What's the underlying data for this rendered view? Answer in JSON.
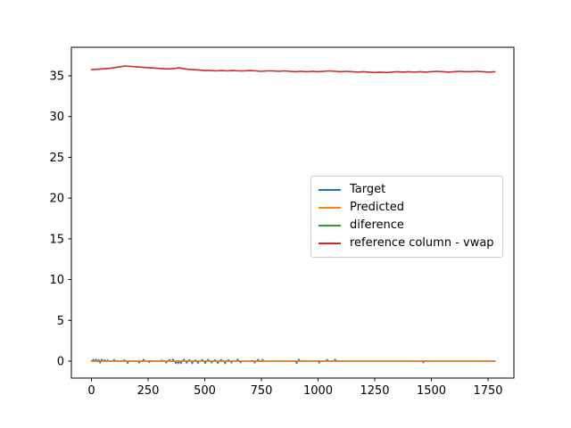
{
  "chart_data": {
    "type": "line",
    "title": "",
    "xlabel": "",
    "ylabel": "",
    "xticks": [
      0,
      250,
      500,
      750,
      1000,
      1250,
      1500,
      1750
    ],
    "yticks": [
      0,
      5,
      10,
      15,
      20,
      25,
      30,
      35
    ],
    "xlim": [
      -88.6,
      1864
    ],
    "ylim": [
      -2.08,
      38.5
    ],
    "grid": false,
    "legend_position": "center-right",
    "legend": [
      {
        "label": "Target",
        "color": "#1f77b4"
      },
      {
        "label": "Predicted",
        "color": "#ff7f0e"
      },
      {
        "label": "diference",
        "color": "#2ca02c"
      },
      {
        "label": "reference column - vwap",
        "color": "#d62728"
      }
    ],
    "series": [
      {
        "name": "diference",
        "color": "#2ca02c",
        "note": "flat at 0, hidden beneath Predicted line",
        "points": [
          [
            0,
            0
          ],
          [
            1780,
            0
          ]
        ]
      },
      {
        "name": "Target",
        "color": "#1f77b4",
        "note": "mostly 0 with small spikes",
        "baseline": 0,
        "x_range": [
          0,
          1780
        ],
        "spikes": [
          [
            8,
            0.18
          ],
          [
            20,
            0.22
          ],
          [
            32,
            0.15
          ],
          [
            38,
            -0.2
          ],
          [
            45,
            0.2
          ],
          [
            58,
            0.15
          ],
          [
            72,
            0.12
          ],
          [
            100,
            0.18
          ],
          [
            145,
            0.15
          ],
          [
            160,
            -0.25
          ],
          [
            210,
            -0.2
          ],
          [
            230,
            0.2
          ],
          [
            255,
            -0.15
          ],
          [
            310,
            0.12
          ],
          [
            330,
            -0.2
          ],
          [
            345,
            0.18
          ],
          [
            360,
            0.22
          ],
          [
            372,
            -0.25
          ],
          [
            383,
            -0.3
          ],
          [
            395,
            -0.28
          ],
          [
            408,
            0.2
          ],
          [
            420,
            -0.22
          ],
          [
            432,
            0.15
          ],
          [
            445,
            -0.3
          ],
          [
            458,
            0.12
          ],
          [
            470,
            -0.25
          ],
          [
            488,
            0.18
          ],
          [
            502,
            -0.28
          ],
          [
            515,
            0.2
          ],
          [
            530,
            -0.2
          ],
          [
            545,
            0.15
          ],
          [
            558,
            -0.25
          ],
          [
            572,
            0.18
          ],
          [
            590,
            -0.3
          ],
          [
            605,
            0.15
          ],
          [
            618,
            -0.2
          ],
          [
            645,
            0.22
          ],
          [
            658,
            -0.18
          ],
          [
            720,
            -0.2
          ],
          [
            735,
            0.2
          ],
          [
            755,
            0.18
          ],
          [
            905,
            -0.25
          ],
          [
            915,
            0.2
          ],
          [
            1005,
            -0.2
          ],
          [
            1040,
            0.18
          ],
          [
            1075,
            0.22
          ],
          [
            1465,
            -0.18
          ]
        ]
      },
      {
        "name": "Predicted",
        "color": "#ff7f0e",
        "note": "flat at 0",
        "points": [
          [
            0,
            0
          ],
          [
            1780,
            0
          ]
        ]
      },
      {
        "name": "reference column - vwap",
        "color": "#d62728",
        "points": [
          [
            0,
            35.75
          ],
          [
            25,
            35.8
          ],
          [
            50,
            35.85
          ],
          [
            75,
            35.9
          ],
          [
            100,
            36.0
          ],
          [
            125,
            36.1
          ],
          [
            150,
            36.2
          ],
          [
            175,
            36.15
          ],
          [
            200,
            36.1
          ],
          [
            225,
            36.05
          ],
          [
            250,
            36.0
          ],
          [
            275,
            35.95
          ],
          [
            300,
            35.9
          ],
          [
            325,
            35.85
          ],
          [
            350,
            35.85
          ],
          [
            370,
            35.9
          ],
          [
            385,
            36.0
          ],
          [
            400,
            35.9
          ],
          [
            425,
            35.8
          ],
          [
            450,
            35.75
          ],
          [
            475,
            35.7
          ],
          [
            500,
            35.65
          ],
          [
            525,
            35.65
          ],
          [
            550,
            35.6
          ],
          [
            575,
            35.65
          ],
          [
            600,
            35.6
          ],
          [
            625,
            35.65
          ],
          [
            650,
            35.6
          ],
          [
            675,
            35.6
          ],
          [
            700,
            35.65
          ],
          [
            725,
            35.6
          ],
          [
            750,
            35.55
          ],
          [
            775,
            35.6
          ],
          [
            800,
            35.6
          ],
          [
            825,
            35.55
          ],
          [
            850,
            35.6
          ],
          [
            875,
            35.55
          ],
          [
            900,
            35.5
          ],
          [
            925,
            35.55
          ],
          [
            950,
            35.5
          ],
          [
            975,
            35.55
          ],
          [
            1000,
            35.5
          ],
          [
            1025,
            35.55
          ],
          [
            1050,
            35.6
          ],
          [
            1075,
            35.55
          ],
          [
            1100,
            35.5
          ],
          [
            1125,
            35.55
          ],
          [
            1150,
            35.5
          ],
          [
            1175,
            35.45
          ],
          [
            1200,
            35.5
          ],
          [
            1225,
            35.45
          ],
          [
            1250,
            35.4
          ],
          [
            1275,
            35.45
          ],
          [
            1300,
            35.4
          ],
          [
            1325,
            35.45
          ],
          [
            1350,
            35.5
          ],
          [
            1375,
            35.45
          ],
          [
            1400,
            35.5
          ],
          [
            1425,
            35.45
          ],
          [
            1450,
            35.5
          ],
          [
            1475,
            35.45
          ],
          [
            1500,
            35.5
          ],
          [
            1525,
            35.55
          ],
          [
            1550,
            35.5
          ],
          [
            1575,
            35.45
          ],
          [
            1600,
            35.5
          ],
          [
            1625,
            35.55
          ],
          [
            1650,
            35.5
          ],
          [
            1675,
            35.5
          ],
          [
            1700,
            35.55
          ],
          [
            1725,
            35.5
          ],
          [
            1750,
            35.45
          ],
          [
            1780,
            35.5
          ]
        ]
      }
    ]
  }
}
